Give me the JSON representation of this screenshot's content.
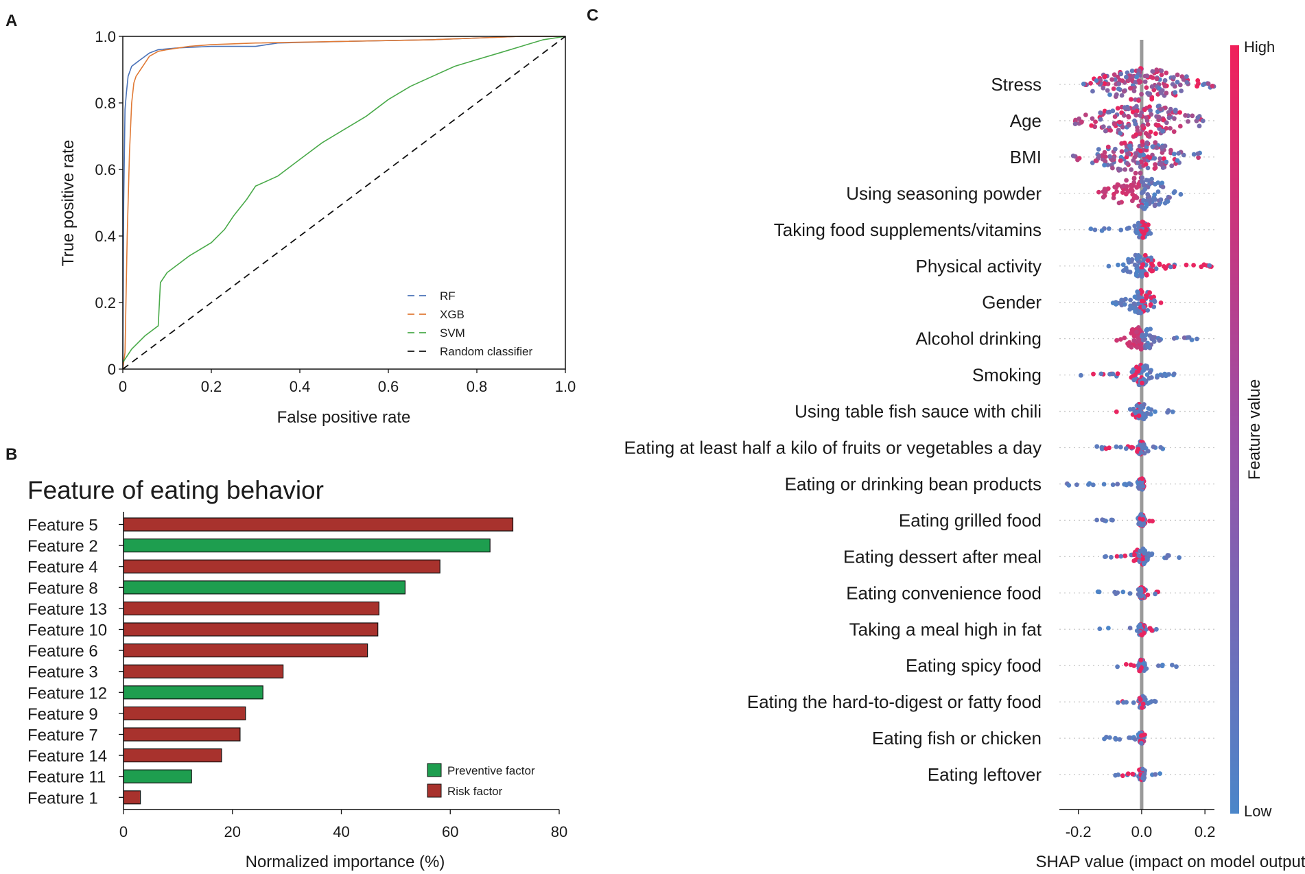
{
  "panels": {
    "a": "A",
    "b": "B",
    "c": "C"
  },
  "chart_data": [
    {
      "panel": "A",
      "type": "line",
      "title": "",
      "xlabel": "False positive rate",
      "ylabel": "True positive rate",
      "xlim": [
        0,
        1
      ],
      "ylim": [
        0,
        1
      ],
      "xticks": [
        "0",
        "0.2",
        "0.4",
        "0.6",
        "0.8",
        "1.0"
      ],
      "yticks": [
        "0",
        "0.2",
        "0.4",
        "0.6",
        "0.8",
        "1.0"
      ],
      "series": [
        {
          "name": "RF",
          "color": "#4a72b8",
          "x": [
            0,
            0.002,
            0.005,
            0.008,
            0.012,
            0.02,
            0.03,
            0.04,
            0.05,
            0.06,
            0.08,
            0.12,
            0.2,
            0.3,
            0.35,
            0.5,
            0.7,
            0.9,
            1.0
          ],
          "y": [
            0,
            0.5,
            0.78,
            0.83,
            0.88,
            0.91,
            0.92,
            0.93,
            0.94,
            0.95,
            0.96,
            0.965,
            0.97,
            0.97,
            0.98,
            0.985,
            0.99,
            1.0,
            1.0
          ]
        },
        {
          "name": "XGB",
          "color": "#e07a36",
          "x": [
            0,
            0.005,
            0.01,
            0.015,
            0.02,
            0.025,
            0.03,
            0.035,
            0.04,
            0.05,
            0.06,
            0.08,
            0.1,
            0.15,
            0.2,
            0.3,
            0.5,
            0.7,
            0.9,
            1.0
          ],
          "y": [
            0,
            0.05,
            0.4,
            0.65,
            0.8,
            0.86,
            0.88,
            0.89,
            0.9,
            0.92,
            0.94,
            0.955,
            0.96,
            0.97,
            0.975,
            0.98,
            0.985,
            0.99,
            1.0,
            1.0
          ]
        },
        {
          "name": "SVM",
          "color": "#4aaa4a",
          "x": [
            0,
            0.02,
            0.05,
            0.08,
            0.085,
            0.09,
            0.1,
            0.15,
            0.2,
            0.23,
            0.25,
            0.28,
            0.3,
            0.35,
            0.4,
            0.45,
            0.5,
            0.55,
            0.6,
            0.65,
            0.7,
            0.75,
            0.8,
            0.85,
            0.9,
            0.95,
            1.0
          ],
          "y": [
            0.02,
            0.06,
            0.1,
            0.13,
            0.26,
            0.27,
            0.29,
            0.34,
            0.38,
            0.42,
            0.46,
            0.51,
            0.55,
            0.58,
            0.63,
            0.68,
            0.72,
            0.76,
            0.81,
            0.85,
            0.88,
            0.91,
            0.93,
            0.95,
            0.97,
            0.99,
            1.0
          ]
        },
        {
          "name": "Random classifier",
          "color": "#111111",
          "dashed": true,
          "x": [
            0,
            1
          ],
          "y": [
            0,
            1
          ]
        }
      ]
    },
    {
      "panel": "B",
      "type": "bar",
      "orientation": "horizontal",
      "title": "Feature of eating behavior",
      "xlabel": "Normalized importance (%)",
      "xlim": [
        0,
        80
      ],
      "xticks": [
        "0",
        "20",
        "40",
        "60",
        "80"
      ],
      "categories": [
        "Feature 5",
        "Feature 2",
        "Feature 4",
        "Feature 8",
        "Feature 13",
        "Feature 10",
        "Feature 6",
        "Feature 3",
        "Feature 12",
        "Feature 9",
        "Feature 7",
        "Feature 14",
        "Feature 11",
        "Feature 1"
      ],
      "values": [
        71.5,
        67.3,
        58.1,
        51.7,
        46.9,
        46.7,
        44.8,
        29.3,
        25.6,
        22.4,
        21.4,
        18.0,
        12.5,
        3.1
      ],
      "factor": [
        "risk",
        "preventive",
        "risk",
        "preventive",
        "risk",
        "risk",
        "risk",
        "risk",
        "preventive",
        "risk",
        "risk",
        "risk",
        "preventive",
        "risk"
      ],
      "colors": {
        "preventive": "#1e9e4f",
        "risk": "#a8322d"
      },
      "legend": [
        {
          "key": "preventive",
          "label": "Preventive factor"
        },
        {
          "key": "risk",
          "label": "Risk factor"
        }
      ]
    },
    {
      "panel": "C",
      "type": "scatter",
      "subtype": "beeswarm",
      "xlabel": "SHAP value (impact on model output)",
      "xlim": [
        -0.26,
        0.23
      ],
      "xticks": [
        "-0.2",
        "0.0",
        "0.2"
      ],
      "colorbar": {
        "title": "Feature value",
        "high": "High",
        "low": "Low",
        "high_color": "#f0205a",
        "low_color": "#4b86c9"
      },
      "features": [
        {
          "name": "Stress",
          "min": -0.19,
          "max": 0.23,
          "width": 0.12
        },
        {
          "name": "Age",
          "min": -0.21,
          "max": 0.2,
          "width": 0.12
        },
        {
          "name": "BMI",
          "min": -0.22,
          "max": 0.19,
          "width": 0.11
        },
        {
          "name": "Using seasoning powder",
          "min": -0.15,
          "max": 0.13,
          "width": 0.07
        },
        {
          "name": "Taking food supplements/vitamins",
          "min": -0.18,
          "max": 0.03,
          "width": 0.02
        },
        {
          "name": "Physical activity",
          "min": -0.12,
          "max": 0.23,
          "width": 0.04
        },
        {
          "name": "Gender",
          "min": -0.1,
          "max": 0.07,
          "width": 0.04
        },
        {
          "name": "Alcohol drinking",
          "min": -0.11,
          "max": 0.2,
          "width": 0.04
        },
        {
          "name": "Smoking",
          "min": -0.2,
          "max": 0.12,
          "width": 0.03
        },
        {
          "name": "Using table fish sauce with chili",
          "min": -0.1,
          "max": 0.1,
          "width": 0.02
        },
        {
          "name": "Eating at least half a kilo of fruits or vegetables a day",
          "min": -0.15,
          "max": 0.08,
          "width": 0.015
        },
        {
          "name": "Eating or drinking bean products",
          "min": -0.25,
          "max": 0.01,
          "width": 0.01
        },
        {
          "name": "Eating grilled food",
          "min": -0.18,
          "max": 0.05,
          "width": 0.01
        },
        {
          "name": "Eating dessert after meal",
          "min": -0.12,
          "max": 0.13,
          "width": 0.02
        },
        {
          "name": "Eating convenience food",
          "min": -0.2,
          "max": 0.08,
          "width": 0.01
        },
        {
          "name": "Taking a meal high in fat",
          "min": -0.14,
          "max": 0.05,
          "width": 0.01
        },
        {
          "name": "Eating spicy food",
          "min": -0.08,
          "max": 0.11,
          "width": 0.01
        },
        {
          "name": "Eating the hard-to-digest or fatty food",
          "min": -0.08,
          "max": 0.06,
          "width": 0.01
        },
        {
          "name": "Eating fish or chicken",
          "min": -0.12,
          "max": 0.01,
          "width": 0.01
        },
        {
          "name": "Eating leftover",
          "min": -0.09,
          "max": 0.06,
          "width": 0.01
        }
      ]
    }
  ]
}
